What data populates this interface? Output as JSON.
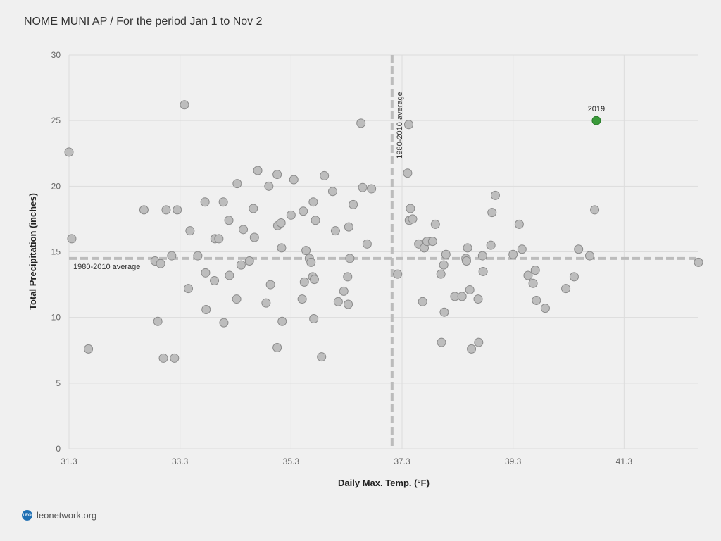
{
  "title": "NOME MUNI AP / For the period Jan 1 to Nov 2",
  "footer": {
    "logo_text": "LEO",
    "site": "leonetwork.org"
  },
  "colors": {
    "point": "#bdbdbd",
    "point_stroke": "#8a8a8a",
    "highlight": "#3a9a3a",
    "highlight_stroke": "#2a7a2a",
    "average_line": "#bcbcbc",
    "grid": "#dcdcdc"
  },
  "chart_data": {
    "type": "scatter",
    "xlabel": "Daily Max. Temp. (°F)",
    "ylabel": "Total Precipitation (inches)",
    "xlim": [
      31.3,
      42.64
    ],
    "ylim": [
      0,
      30
    ],
    "xticks": [
      "31.3",
      "33.3",
      "35.3",
      "37.3",
      "39.3",
      "41.3"
    ],
    "yticks": [
      "0",
      "5",
      "10",
      "15",
      "20",
      "25",
      "30"
    ],
    "grid": true,
    "averages": {
      "x": 37.12,
      "y": 14.5,
      "x_label": "1980-2010 average",
      "y_label": "1980-2010 average"
    },
    "highlight": {
      "label": "2019",
      "x": 40.8,
      "y": 25.0
    },
    "points": [
      [
        31.3,
        22.6
      ],
      [
        31.35,
        16.0
      ],
      [
        31.65,
        7.6
      ],
      [
        32.65,
        18.2
      ],
      [
        32.85,
        14.3
      ],
      [
        32.9,
        9.7
      ],
      [
        32.95,
        14.1
      ],
      [
        33.0,
        6.9
      ],
      [
        33.05,
        18.2
      ],
      [
        33.15,
        14.7
      ],
      [
        33.2,
        6.9
      ],
      [
        33.25,
        18.2
      ],
      [
        33.38,
        26.2
      ],
      [
        33.45,
        12.2
      ],
      [
        33.48,
        16.6
      ],
      [
        33.62,
        14.7
      ],
      [
        33.75,
        18.8
      ],
      [
        33.76,
        13.4
      ],
      [
        33.77,
        10.6
      ],
      [
        33.92,
        12.8
      ],
      [
        33.93,
        16.0
      ],
      [
        34.0,
        16.0
      ],
      [
        34.08,
        18.8
      ],
      [
        34.09,
        9.6
      ],
      [
        34.18,
        17.4
      ],
      [
        34.19,
        13.2
      ],
      [
        34.32,
        11.4
      ],
      [
        34.33,
        20.2
      ],
      [
        34.4,
        14.0
      ],
      [
        34.44,
        16.7
      ],
      [
        34.55,
        14.3
      ],
      [
        34.62,
        18.3
      ],
      [
        34.64,
        16.1
      ],
      [
        34.7,
        21.2
      ],
      [
        34.85,
        11.1
      ],
      [
        34.9,
        20.0
      ],
      [
        34.93,
        12.5
      ],
      [
        35.05,
        7.7
      ],
      [
        35.05,
        20.9
      ],
      [
        35.06,
        17.0
      ],
      [
        35.12,
        17.2
      ],
      [
        35.13,
        15.3
      ],
      [
        35.14,
        9.7
      ],
      [
        35.3,
        17.8
      ],
      [
        35.35,
        20.5
      ],
      [
        35.5,
        11.4
      ],
      [
        35.52,
        18.1
      ],
      [
        35.54,
        12.7
      ],
      [
        35.57,
        15.1
      ],
      [
        35.63,
        14.5
      ],
      [
        35.66,
        14.2
      ],
      [
        35.69,
        13.1
      ],
      [
        35.7,
        18.8
      ],
      [
        35.71,
        9.9
      ],
      [
        35.72,
        12.9
      ],
      [
        35.74,
        17.4
      ],
      [
        35.85,
        7.0
      ],
      [
        35.9,
        20.8
      ],
      [
        36.05,
        19.6
      ],
      [
        36.1,
        16.6
      ],
      [
        36.15,
        11.2
      ],
      [
        36.25,
        12.0
      ],
      [
        36.32,
        13.1
      ],
      [
        36.33,
        11.0
      ],
      [
        36.34,
        16.9
      ],
      [
        36.36,
        14.5
      ],
      [
        36.42,
        18.6
      ],
      [
        36.56,
        24.8
      ],
      [
        36.59,
        19.9
      ],
      [
        36.67,
        15.6
      ],
      [
        36.75,
        19.8
      ],
      [
        37.22,
        13.3
      ],
      [
        37.4,
        21.0
      ],
      [
        37.42,
        24.7
      ],
      [
        37.43,
        17.4
      ],
      [
        37.45,
        18.3
      ],
      [
        37.49,
        17.5
      ],
      [
        37.6,
        15.6
      ],
      [
        37.67,
        11.2
      ],
      [
        37.7,
        15.3
      ],
      [
        37.75,
        15.8
      ],
      [
        37.85,
        15.8
      ],
      [
        37.9,
        17.1
      ],
      [
        38.0,
        13.3
      ],
      [
        38.01,
        8.1
      ],
      [
        38.05,
        14.0
      ],
      [
        38.06,
        10.4
      ],
      [
        38.09,
        14.8
      ],
      [
        38.25,
        11.6
      ],
      [
        38.38,
        11.6
      ],
      [
        38.45,
        14.5
      ],
      [
        38.46,
        14.3
      ],
      [
        38.48,
        15.3
      ],
      [
        38.52,
        12.1
      ],
      [
        38.55,
        7.6
      ],
      [
        38.67,
        11.4
      ],
      [
        38.68,
        8.1
      ],
      [
        38.75,
        14.7
      ],
      [
        38.76,
        13.5
      ],
      [
        38.9,
        15.5
      ],
      [
        38.92,
        18.0
      ],
      [
        38.98,
        19.3
      ],
      [
        39.3,
        14.8
      ],
      [
        39.41,
        17.1
      ],
      [
        39.46,
        15.2
      ],
      [
        39.57,
        13.2
      ],
      [
        39.66,
        12.6
      ],
      [
        39.7,
        13.6
      ],
      [
        39.72,
        11.3
      ],
      [
        39.88,
        10.7
      ],
      [
        40.25,
        12.2
      ],
      [
        40.4,
        13.1
      ],
      [
        40.48,
        15.2
      ],
      [
        40.68,
        14.7
      ],
      [
        40.77,
        18.2
      ],
      [
        42.64,
        14.2
      ]
    ]
  }
}
